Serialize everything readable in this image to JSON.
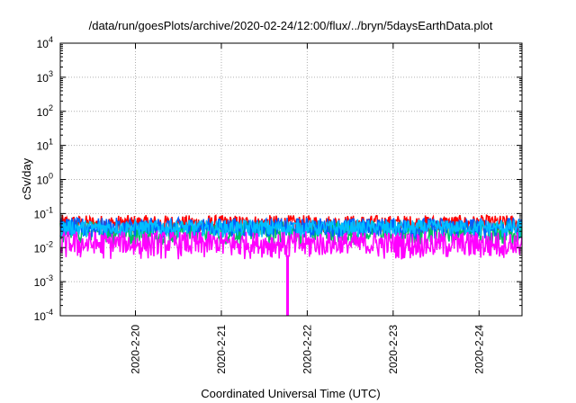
{
  "chart_data": {
    "type": "line",
    "title": "/data/run/goesPlots/archive/2020-02-24/12:00/flux/../bryn/5daysEarthData.plot",
    "xlabel": "Coordinated Universal Time (UTC)",
    "ylabel": "cSv/day",
    "yscale": "log",
    "ylim": [
      0.0001,
      10000
    ],
    "yticks": [
      {
        "value": 0.0001,
        "base": "10",
        "exp": "-4"
      },
      {
        "value": 0.001,
        "base": "10",
        "exp": "-3"
      },
      {
        "value": 0.01,
        "base": "10",
        "exp": "-2"
      },
      {
        "value": 0.1,
        "base": "10",
        "exp": "-1"
      },
      {
        "value": 1,
        "base": "10",
        "exp": "0"
      },
      {
        "value": 10,
        "base": "10",
        "exp": "1"
      },
      {
        "value": 100,
        "base": "10",
        "exp": "2"
      },
      {
        "value": 1000,
        "base": "10",
        "exp": "3"
      },
      {
        "value": 10000,
        "base": "10",
        "exp": "4"
      }
    ],
    "xlim": [
      "2020-02-19T03:00",
      "2020-02-24T12:00"
    ],
    "xticks": [
      "2020-2-20",
      "2020-2-21",
      "2020-2-22",
      "2020-2-23",
      "2020-2-24"
    ],
    "grid": true,
    "series": [
      {
        "color": "#ff0000",
        "low": 0.025,
        "high": 0.09
      },
      {
        "color": "#00c060",
        "low": 0.012,
        "high": 0.06
      },
      {
        "color": "#0060ff",
        "low": 0.018,
        "high": 0.075
      },
      {
        "color": "#00bfff",
        "low": 0.02,
        "high": 0.065
      },
      {
        "color": "#ff00ff",
        "low": 0.0045,
        "high": 0.03
      }
    ],
    "dropouts": [
      {
        "x": "2020-02-21T18:30",
        "y": 0.0001,
        "color": "#ff00ff"
      }
    ]
  }
}
